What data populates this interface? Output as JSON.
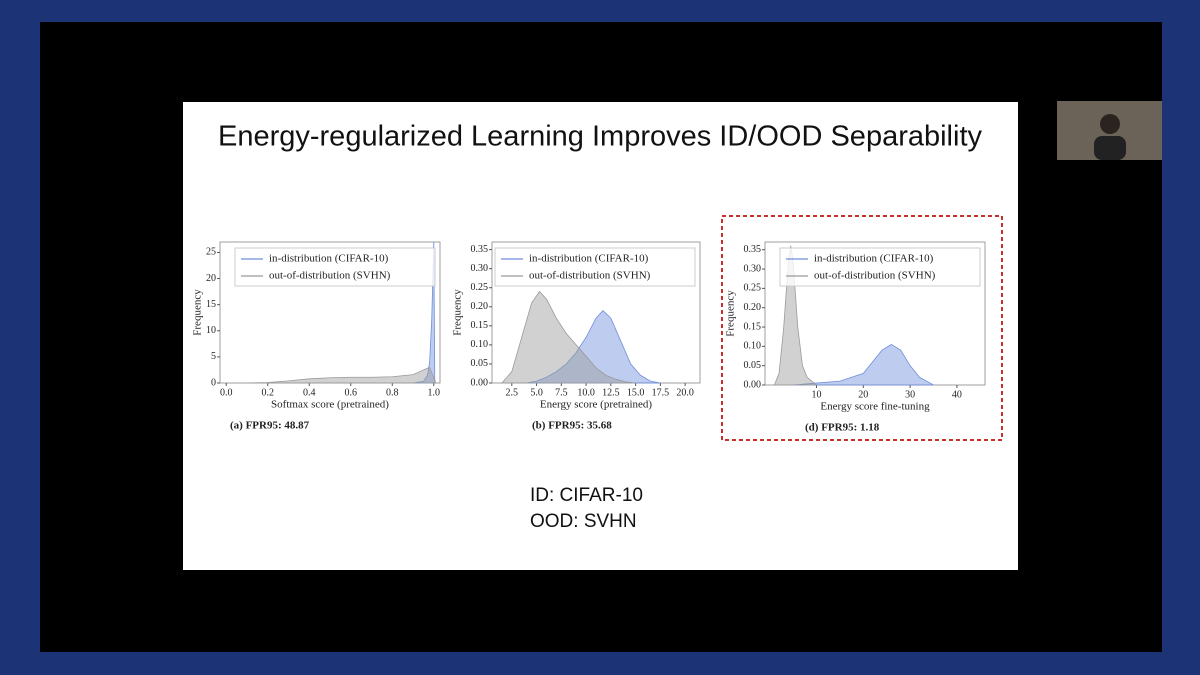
{
  "slide": {
    "title": "Energy-regularized Learning Improves ID/OOD Separability",
    "notes": [
      "ID: CIFAR-10",
      "OOD: SVHN"
    ]
  },
  "chart_data": [
    {
      "type": "area",
      "caption": "(a) FPR95: 48.87",
      "xlabel": "Softmax score (pretrained)",
      "ylabel": "Frequency",
      "xlim": [
        -0.03,
        1.03
      ],
      "ylim": [
        0,
        27
      ],
      "xticks": [
        {
          "value": 0,
          "label": "0.0"
        },
        {
          "value": 0.2,
          "label": "0.2"
        },
        {
          "value": 0.4,
          "label": "0.4"
        },
        {
          "value": 0.6,
          "label": "0.6"
        },
        {
          "value": 0.8,
          "label": "0.8"
        },
        {
          "value": 1,
          "label": "1.0"
        }
      ],
      "yticks": [
        0,
        5,
        10,
        15,
        20,
        25
      ],
      "series": [
        {
          "name": "in-distribution (CIFAR-10)",
          "color": "#6f8fdc",
          "x": [
            0.9,
            0.95,
            0.97,
            0.98,
            0.99,
            1.0,
            1.005
          ],
          "values": [
            0,
            0.3,
            1.5,
            4,
            12,
            27,
            0
          ]
        },
        {
          "name": "out-of-distribution (SVHN)",
          "color": "#9a9a9a",
          "x": [
            0.1,
            0.2,
            0.3,
            0.4,
            0.5,
            0.6,
            0.7,
            0.8,
            0.9,
            0.95,
            0.98,
            1.0,
            1.01
          ],
          "values": [
            0,
            0.1,
            0.4,
            0.8,
            1.0,
            1.1,
            1.1,
            1.2,
            1.6,
            2.5,
            3,
            1,
            0
          ]
        }
      ]
    },
    {
      "type": "area",
      "caption": "(b) FPR95: 35.68",
      "xlabel": "Energy score (pretrained)",
      "ylabel": "Frequency",
      "xlim": [
        0.5,
        21.5
      ],
      "ylim": [
        0,
        0.37
      ],
      "xticks": [
        2.5,
        {
          "value": 5,
          "label": "5.0"
        },
        7.5,
        {
          "value": 10,
          "label": "10.0"
        },
        12.5,
        {
          "value": 15,
          "label": "15.0"
        },
        17.5,
        {
          "value": 20,
          "label": "20.0"
        }
      ],
      "yticks": [
        {
          "value": 0,
          "label": "0.00"
        },
        0.05,
        {
          "value": 0.1,
          "label": "0.10"
        },
        0.15,
        {
          "value": 0.2,
          "label": "0.20"
        },
        0.25,
        {
          "value": 0.3,
          "label": "0.30"
        },
        0.35
      ],
      "series": [
        {
          "name": "in-distribution (CIFAR-10)",
          "color": "#6f8fdc",
          "x": [
            4,
            5,
            6,
            7,
            8,
            9,
            10,
            11,
            11.7,
            12.5,
            13.5,
            14.5,
            15.5,
            16.5,
            17.5
          ],
          "values": [
            0,
            0.005,
            0.015,
            0.03,
            0.05,
            0.08,
            0.12,
            0.17,
            0.19,
            0.17,
            0.11,
            0.05,
            0.02,
            0.005,
            0
          ]
        },
        {
          "name": "out-of-distribution (SVHN)",
          "color": "#9a9a9a",
          "x": [
            1.5,
            2.5,
            3.5,
            4.5,
            5.3,
            6,
            7,
            8,
            9,
            10,
            11,
            12,
            13,
            14,
            15
          ],
          "values": [
            0,
            0.03,
            0.12,
            0.21,
            0.24,
            0.22,
            0.17,
            0.13,
            0.1,
            0.07,
            0.04,
            0.02,
            0.01,
            0.003,
            0
          ]
        }
      ]
    },
    {
      "type": "area",
      "caption": "(d) FPR95: 1.18",
      "xlabel": "Energy score fine-tuning",
      "ylabel": "Frequency",
      "xlim": [
        -1,
        46
      ],
      "ylim": [
        0,
        0.37
      ],
      "xticks": [
        10,
        20,
        30,
        40
      ],
      "yticks": [
        {
          "value": 0,
          "label": "0.00"
        },
        0.05,
        {
          "value": 0.1,
          "label": "0.10"
        },
        0.15,
        {
          "value": 0.2,
          "label": "0.20"
        },
        0.25,
        {
          "value": 0.3,
          "label": "0.30"
        },
        0.35
      ],
      "series": [
        {
          "name": "in-distribution (CIFAR-10)",
          "color": "#6f8fdc",
          "x": [
            5,
            10,
            15,
            20,
            22,
            24,
            26,
            28,
            30,
            32,
            35
          ],
          "values": [
            0,
            0.005,
            0.01,
            0.03,
            0.06,
            0.09,
            0.105,
            0.09,
            0.05,
            0.02,
            0
          ]
        },
        {
          "name": "out-of-distribution (SVHN)",
          "color": "#9a9a9a",
          "x": [
            1,
            2,
            3,
            4,
            4.5,
            5,
            6,
            7,
            8,
            10
          ],
          "values": [
            0,
            0.03,
            0.15,
            0.32,
            0.36,
            0.32,
            0.15,
            0.05,
            0.02,
            0
          ]
        }
      ]
    }
  ]
}
